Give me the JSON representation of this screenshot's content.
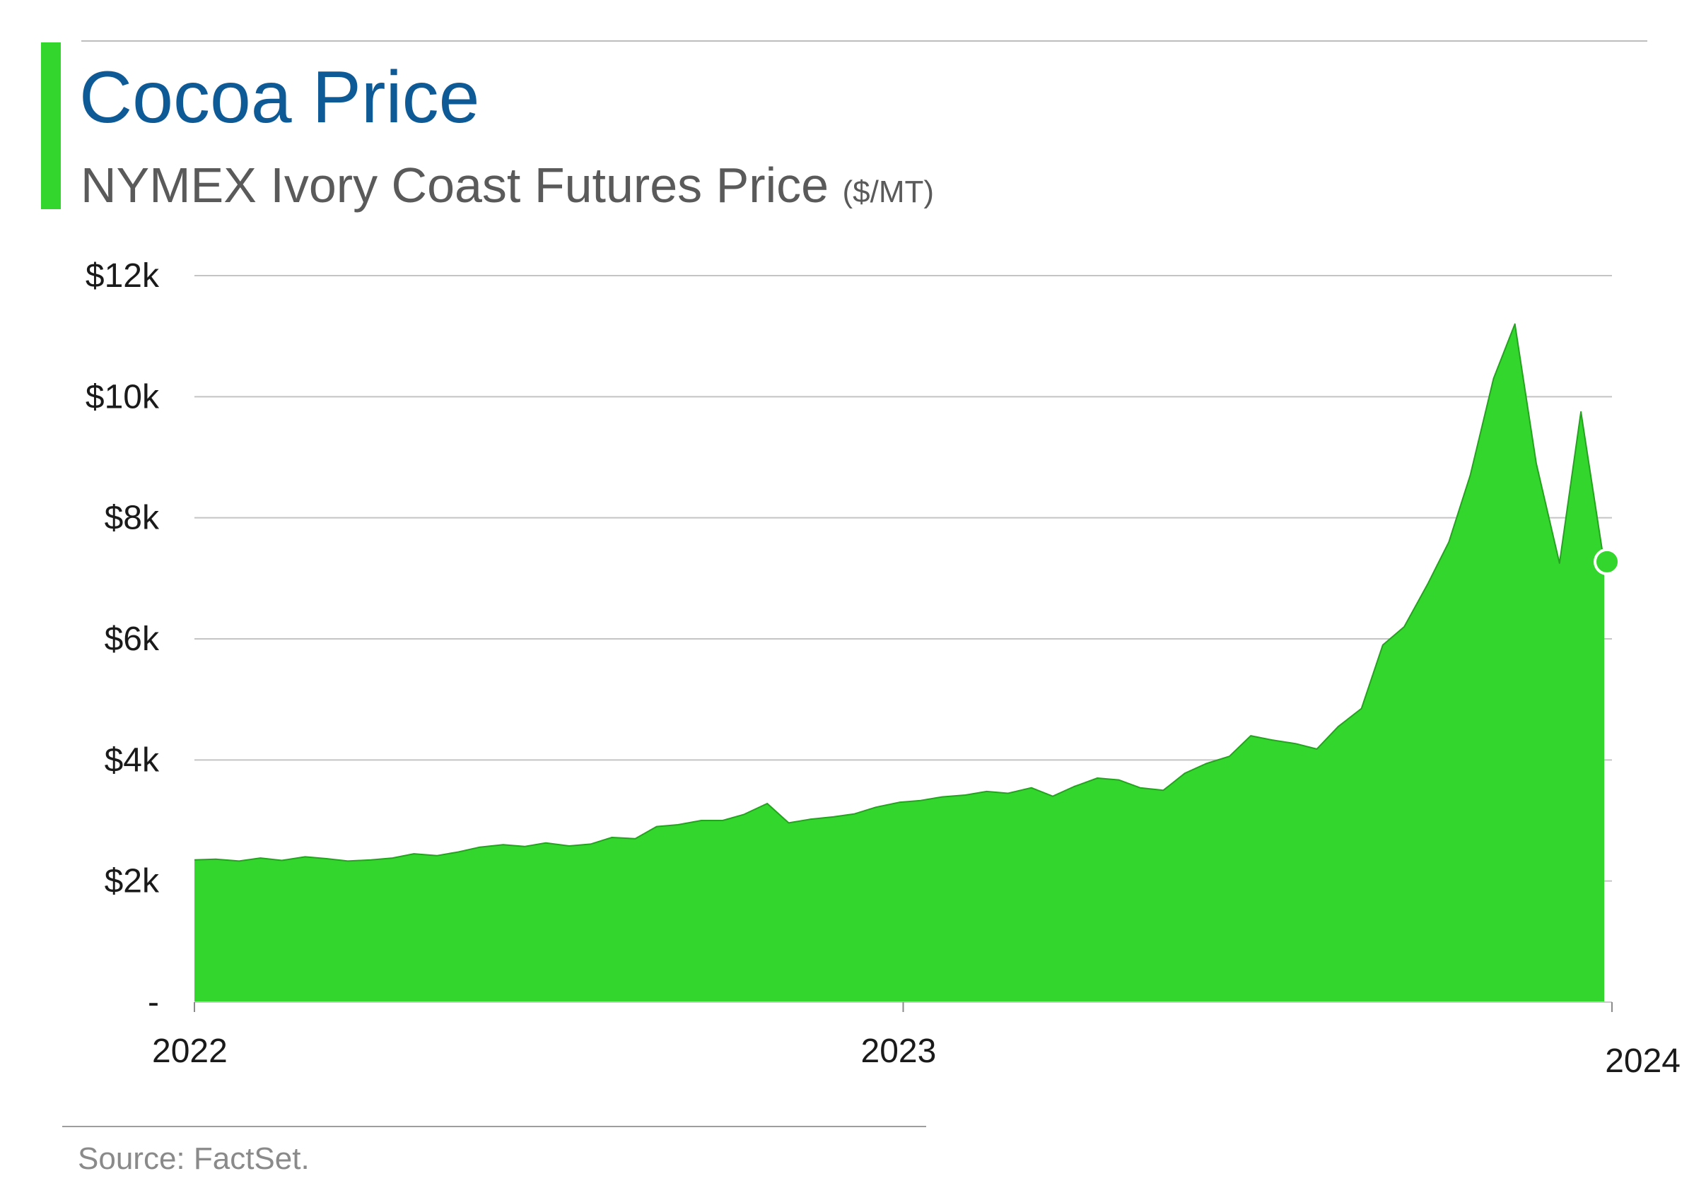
{
  "header": {
    "title": "Cocoa Price",
    "subtitle": "NYMEX Ivory Coast Futures Price",
    "unit": "($/MT)"
  },
  "footer": {
    "source": "Source: FactSet."
  },
  "colors": {
    "accent": "#33d62c",
    "fill": "#33d62c",
    "line": "#25a21f",
    "title": "#0d5a96",
    "grid": "#c4c4c4"
  },
  "chart_data": {
    "type": "area",
    "title": "Cocoa Price",
    "subtitle": "NYMEX Ivory Coast Futures Price ($/MT)",
    "xlabel": "",
    "ylabel": "",
    "x_ticks": [
      "2022",
      "2023",
      "2024"
    ],
    "y_ticks": [
      {
        "value": 0,
        "label": "-"
      },
      {
        "value": 2000,
        "label": "$2k"
      },
      {
        "value": 4000,
        "label": "$4k"
      },
      {
        "value": 6000,
        "label": "$6k"
      },
      {
        "value": 8000,
        "label": "$8k"
      },
      {
        "value": 10000,
        "label": "$10k"
      },
      {
        "value": 12000,
        "label": "$12k"
      }
    ],
    "x_range": [
      "2022-01-01",
      "2024-01-01"
    ],
    "ylim": [
      0,
      12000
    ],
    "grid": true,
    "legend": "none",
    "end_marker": true,
    "series": [
      {
        "x": [
          "2022-01-01",
          "2022-01-12",
          "2022-01-24",
          "2022-02-04",
          "2022-02-15",
          "2022-02-27",
          "2022-03-10",
          "2022-03-21",
          "2022-04-02",
          "2022-04-13",
          "2022-04-24",
          "2022-05-06",
          "2022-05-17",
          "2022-05-28",
          "2022-06-09",
          "2022-06-20",
          "2022-07-01",
          "2022-07-13",
          "2022-07-24",
          "2022-08-04",
          "2022-08-16",
          "2022-08-27",
          "2022-09-07",
          "2022-09-19",
          "2022-09-30",
          "2022-10-11",
          "2022-10-23",
          "2022-11-03",
          "2022-11-14",
          "2022-11-26",
          "2022-12-07",
          "2022-12-18",
          "2022-12-30",
          "2023-01-10",
          "2023-01-21",
          "2023-02-02",
          "2023-02-13",
          "2023-02-24",
          "2023-03-08",
          "2023-03-19",
          "2023-03-30",
          "2023-04-11",
          "2023-04-22",
          "2023-05-03",
          "2023-05-15",
          "2023-05-26",
          "2023-06-06",
          "2023-06-18",
          "2023-06-29",
          "2023-07-10",
          "2023-07-22",
          "2023-08-02",
          "2023-08-13",
          "2023-08-25",
          "2023-09-05",
          "2023-09-16",
          "2023-09-28",
          "2023-10-09",
          "2023-10-20",
          "2023-11-01",
          "2023-11-12",
          "2023-11-23",
          "2023-12-05",
          "2023-12-16",
          "2023-12-28"
        ],
        "values": [
          2350,
          2360,
          2330,
          2380,
          2340,
          2400,
          2370,
          2330,
          2350,
          2380,
          2450,
          2420,
          2480,
          2560,
          2600,
          2570,
          2630,
          2580,
          2610,
          2720,
          2700,
          2900,
          2930,
          3000,
          3000,
          3100,
          3280,
          2960,
          3020,
          3060,
          3110,
          3220,
          3300,
          3330,
          3390,
          3420,
          3480,
          3450,
          3540,
          3400,
          3560,
          3700,
          3670,
          3540,
          3500,
          3780,
          3940,
          4060,
          4400,
          4330,
          4270,
          4180,
          4550,
          4850,
          5900,
          6200,
          6900,
          7600,
          8700,
          10300,
          11200,
          8900,
          7250,
          9750,
          7250
        ]
      }
    ]
  }
}
